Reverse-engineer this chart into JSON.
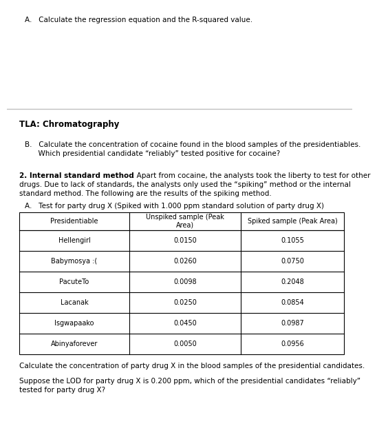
{
  "line1": "A.   Calculate the regression equation and the R-squared value.",
  "tla_label": "TLA: Chromatography",
  "line_b1": "B.   Calculate the concentration of cocaine found in the blood samples of the presidentiables.",
  "line_b2": "      Which presidential candidate “reliably” tested positive for cocaine?",
  "section2_bold": "2. Internal standard method",
  "section2_rest": ". Apart from cocaine, the analysts took the liberty to test for other",
  "section2_line2": "drugs. Due to lack of standards, the analysts only used the “spiking” method or the internal",
  "section2_line3": "standard method. The following are the results of the spiking method.",
  "subsection_a": "A.   Test for party drug X (Spiked with 1.000 ppm standard solution of party drug X)",
  "col_headers": [
    "Presidentiable",
    "Unspiked sample (Peak\nArea)",
    "Spiked sample (Peak Area)"
  ],
  "rows": [
    [
      "Hellengirl",
      "0.0150",
      "0.1055"
    ],
    [
      "Babymosya :(",
      "0.0260",
      "0.0750"
    ],
    [
      "PacuteTo",
      "0.0098",
      "0.2048"
    ],
    [
      "Lacanak",
      "0.0250",
      "0.0854"
    ],
    [
      "Isgwapaako",
      "0.0450",
      "0.0987"
    ],
    [
      "Abinyaforever",
      "0.0050",
      "0.0956"
    ]
  ],
  "footer1": "Calculate the concentration of party drug X in the blood samples of the presidential candidates.",
  "footer2a": "Suppose the LOD for party drug X is 0.200 ppm, which of the presidential candidates “reliably”",
  "footer2b": "tested for party drug X?",
  "bg_color": "#ffffff",
  "text_color": "#000000"
}
